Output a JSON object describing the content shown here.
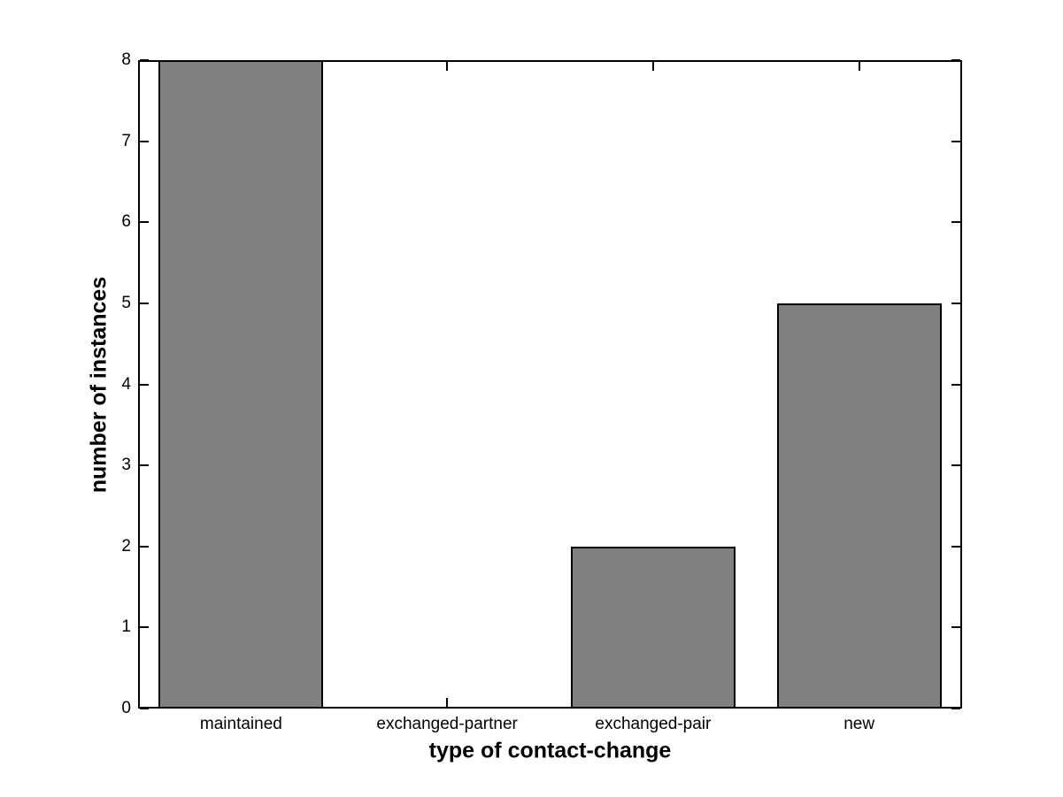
{
  "chart_data": {
    "type": "bar",
    "categories": [
      "maintained",
      "exchanged-partner",
      "exchanged-pair",
      "new"
    ],
    "values": [
      8,
      0,
      2,
      5
    ],
    "xlabel": "type of contact-change",
    "ylabel": "number of instances",
    "ylim": [
      0,
      8
    ],
    "yticks": [
      0,
      1,
      2,
      3,
      4,
      5,
      6,
      7,
      8
    ],
    "xlim": [
      0.5,
      4.5
    ],
    "bar_width_fraction": 0.8,
    "grid": false,
    "legend": "none",
    "bar_color": "#808080",
    "bar_edge_color": "#000000",
    "axis_color": "#000000",
    "text_color": "#000000",
    "background_color": "#ffffff"
  }
}
